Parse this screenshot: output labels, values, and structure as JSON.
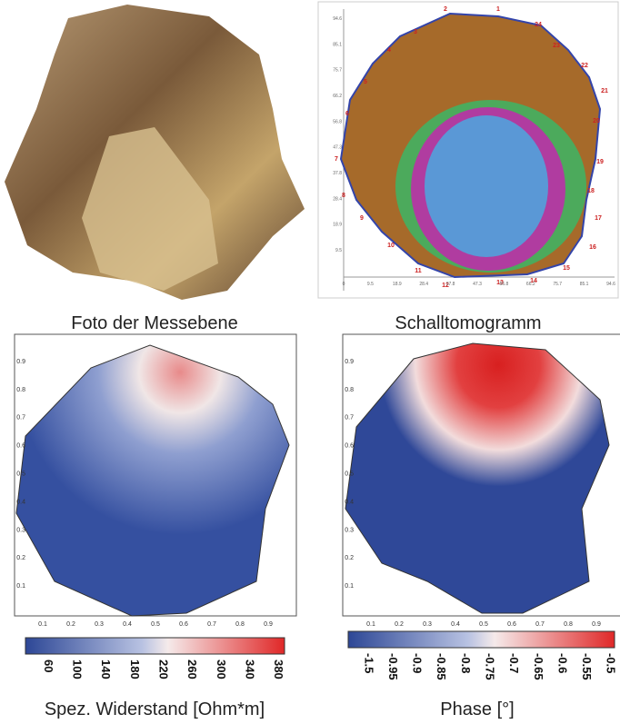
{
  "photo": {
    "caption": "Foto der Messebene"
  },
  "tomogram": {
    "caption": "Schalltomogramm",
    "sensors": [
      "1",
      "2",
      "3",
      "4",
      "5",
      "6",
      "7",
      "8",
      "9",
      "10",
      "11",
      "12",
      "13",
      "14",
      "15",
      "16",
      "17",
      "18",
      "19",
      "20",
      "21",
      "22",
      "23",
      "24"
    ],
    "yticks": [
      "94.6",
      "85.1",
      "75.7",
      "66.2",
      "56.8",
      "47.3",
      "37.8",
      "28.4",
      "18.9",
      "9.5"
    ],
    "xticks": [
      "0",
      "9.5",
      "18.9",
      "28.4",
      "37.8",
      "47.3",
      "56.8",
      "66.2",
      "75.7",
      "85.1",
      "94.6"
    ]
  },
  "resistivity": {
    "caption": "Spez. Widerstand [Ohm*m]",
    "ticks": [
      "0.1",
      "0.2",
      "0.3",
      "0.4",
      "0.5",
      "0.6",
      "0.7",
      "0.8",
      "0.9"
    ],
    "colorbar": [
      "60",
      "100",
      "140",
      "180",
      "220",
      "260",
      "300",
      "340",
      "380"
    ]
  },
  "phase": {
    "caption": "Phase [°]",
    "ticks": [
      "0.1",
      "0.2",
      "0.3",
      "0.4",
      "0.5",
      "0.6",
      "0.7",
      "0.8",
      "0.9"
    ],
    "colorbar": [
      "-1.5",
      "-0.95",
      "-0.9",
      "-0.85",
      "-0.8",
      "-0.75",
      "-0.7",
      "-0.65",
      "-0.6",
      "-0.55",
      "-0.5"
    ]
  }
}
